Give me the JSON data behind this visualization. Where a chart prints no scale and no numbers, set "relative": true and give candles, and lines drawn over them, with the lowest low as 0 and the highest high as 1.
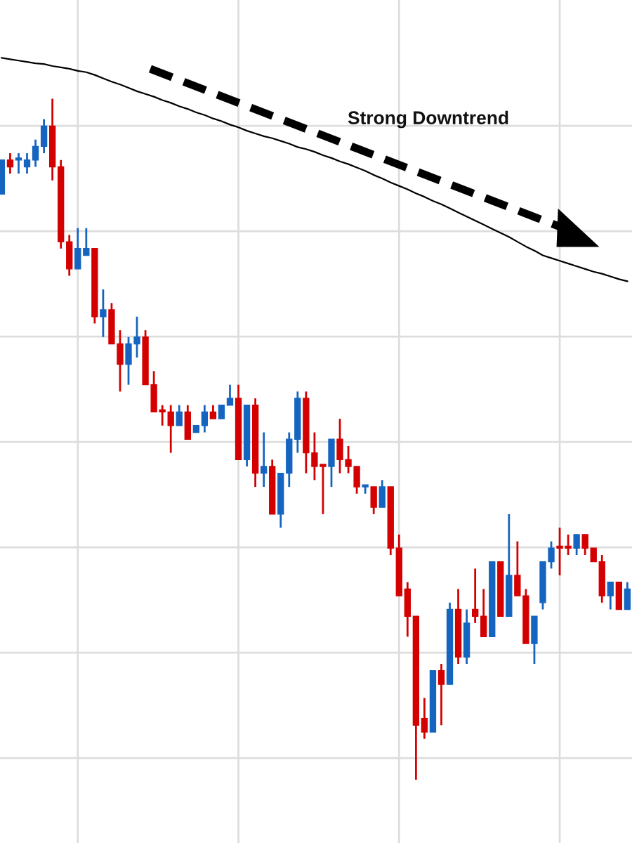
{
  "chart_data": {
    "type": "candlestick",
    "relative": true,
    "grid": true,
    "annotations": [
      "Strong Downtrend"
    ],
    "categories": [
      null,
      null,
      null,
      null,
      null,
      null,
      null,
      null,
      null,
      null,
      null,
      null,
      null,
      null,
      null,
      null,
      null,
      null,
      null,
      null,
      null,
      null,
      null,
      null,
      null,
      null,
      null,
      null,
      null,
      null,
      null,
      null,
      null,
      null,
      null,
      null,
      null,
      null,
      null,
      null,
      null,
      null,
      null,
      null,
      null,
      null,
      null,
      null,
      null,
      null,
      null,
      null,
      null,
      null,
      null,
      null,
      null,
      null,
      null,
      null,
      null,
      null,
      null,
      null,
      null,
      null,
      null,
      null,
      null,
      null,
      null,
      null,
      null,
      null,
      null
    ],
    "ohlc": [
      [
        0.86,
        0.91,
        0.86,
        0.91
      ],
      [
        0.91,
        0.92,
        0.89,
        0.9
      ],
      [
        0.91,
        0.92,
        0.89,
        0.91
      ],
      [
        0.9,
        0.92,
        0.89,
        0.91
      ],
      [
        0.91,
        0.94,
        0.9,
        0.93
      ],
      [
        0.93,
        0.97,
        0.92,
        0.96
      ],
      [
        0.96,
        1.0,
        0.88,
        0.9
      ],
      [
        0.9,
        0.91,
        0.78,
        0.79
      ],
      [
        0.79,
        0.8,
        0.74,
        0.75
      ],
      [
        0.75,
        0.81,
        0.75,
        0.78
      ],
      [
        0.77,
        0.81,
        0.77,
        0.78
      ],
      [
        0.78,
        0.78,
        0.67,
        0.68
      ],
      [
        0.68,
        0.72,
        0.65,
        0.69
      ],
      [
        0.69,
        0.7,
        0.64,
        0.64
      ],
      [
        0.64,
        0.66,
        0.57,
        0.61
      ],
      [
        0.61,
        0.65,
        0.58,
        0.64
      ],
      [
        0.64,
        0.68,
        0.62,
        0.65
      ],
      [
        0.65,
        0.66,
        0.58,
        0.58
      ],
      [
        0.58,
        0.6,
        0.54,
        0.54
      ],
      [
        0.54,
        0.55,
        0.52,
        0.54
      ],
      [
        0.54,
        0.55,
        0.48,
        0.52
      ],
      [
        0.52,
        0.55,
        0.52,
        0.54
      ],
      [
        0.54,
        0.55,
        0.5,
        0.5
      ],
      [
        0.51,
        0.52,
        0.51,
        0.52
      ],
      [
        0.52,
        0.55,
        0.51,
        0.54
      ],
      [
        0.54,
        0.55,
        0.53,
        0.53
      ],
      [
        0.53,
        0.55,
        0.53,
        0.55
      ],
      [
        0.55,
        0.58,
        0.55,
        0.56
      ],
      [
        0.56,
        0.58,
        0.47,
        0.47
      ],
      [
        0.47,
        0.55,
        0.46,
        0.55
      ],
      [
        0.55,
        0.56,
        0.43,
        0.45
      ],
      [
        0.45,
        0.51,
        0.43,
        0.46
      ],
      [
        0.46,
        0.47,
        0.39,
        0.39
      ],
      [
        0.39,
        0.45,
        0.37,
        0.45
      ],
      [
        0.45,
        0.51,
        0.43,
        0.5
      ],
      [
        0.5,
        0.57,
        0.48,
        0.56
      ],
      [
        0.56,
        0.57,
        0.45,
        0.48
      ],
      [
        0.48,
        0.51,
        0.44,
        0.46
      ],
      [
        0.46,
        0.46,
        0.39,
        0.46
      ],
      [
        0.46,
        0.5,
        0.43,
        0.5
      ],
      [
        0.5,
        0.53,
        0.45,
        0.47
      ],
      [
        0.47,
        0.49,
        0.45,
        0.46
      ],
      [
        0.46,
        0.46,
        0.42,
        0.43
      ],
      [
        0.43,
        0.43,
        0.42,
        0.43
      ],
      [
        0.43,
        0.43,
        0.39,
        0.4
      ],
      [
        0.4,
        0.44,
        0.4,
        0.43
      ],
      [
        0.43,
        0.43,
        0.33,
        0.34
      ],
      [
        0.34,
        0.36,
        0.27,
        0.27
      ],
      [
        0.28,
        0.29,
        0.21,
        0.24
      ],
      [
        0.24,
        0.24,
        0.0,
        0.08
      ],
      [
        0.09,
        0.12,
        0.06,
        0.07
      ],
      [
        0.07,
        0.16,
        0.07,
        0.16
      ],
      [
        0.16,
        0.17,
        0.08,
        0.14
      ],
      [
        0.14,
        0.26,
        0.14,
        0.25
      ],
      [
        0.25,
        0.28,
        0.17,
        0.18
      ],
      [
        0.18,
        0.25,
        0.17,
        0.23
      ],
      [
        0.25,
        0.31,
        0.23,
        0.24
      ],
      [
        0.24,
        0.28,
        0.21,
        0.21
      ],
      [
        0.21,
        0.32,
        0.21,
        0.32
      ],
      [
        0.32,
        0.32,
        0.24,
        0.24
      ],
      [
        0.24,
        0.39,
        0.24,
        0.3
      ],
      [
        0.3,
        0.35,
        0.27,
        0.27
      ],
      [
        0.27,
        0.28,
        0.2,
        0.2
      ],
      [
        0.2,
        0.24,
        0.17,
        0.24
      ],
      [
        0.26,
        0.32,
        0.25,
        0.32
      ],
      [
        0.32,
        0.35,
        0.31,
        0.34
      ],
      [
        0.34,
        0.37,
        0.3,
        0.34
      ],
      [
        0.34,
        0.36,
        0.33,
        0.34
      ],
      [
        0.34,
        0.36,
        0.33,
        0.36
      ],
      [
        0.36,
        0.36,
        0.33,
        0.34
      ],
      [
        0.34,
        0.34,
        0.32,
        0.32
      ],
      [
        0.32,
        0.33,
        0.26,
        0.27
      ],
      [
        0.27,
        0.29,
        0.25,
        0.29
      ],
      [
        0.29,
        0.29,
        0.25,
        0.25
      ],
      [
        0.25,
        0.29,
        0.25,
        0.28
      ]
    ],
    "colors": [
      "#1565c0",
      "#d40000",
      "#1565c0",
      "#1565c0",
      "#1565c0",
      "#1565c0",
      "#d40000",
      "#d40000",
      "#d40000",
      "#1565c0",
      "#1565c0",
      "#d40000",
      "#1565c0",
      "#d40000",
      "#d40000",
      "#1565c0",
      "#1565c0",
      "#d40000",
      "#d40000",
      "#d40000",
      "#d40000",
      "#1565c0",
      "#d40000",
      "#1565c0",
      "#1565c0",
      "#d40000",
      "#1565c0",
      "#1565c0",
      "#d40000",
      "#1565c0",
      "#d40000",
      "#1565c0",
      "#d40000",
      "#1565c0",
      "#1565c0",
      "#1565c0",
      "#d40000",
      "#d40000",
      "#d40000",
      "#1565c0",
      "#d40000",
      "#d40000",
      "#d40000",
      "#1565c0",
      "#d40000",
      "#1565c0",
      "#d40000",
      "#d40000",
      "#d40000",
      "#d40000",
      "#d40000",
      "#1565c0",
      "#d40000",
      "#1565c0",
      "#d40000",
      "#1565c0",
      "#d40000",
      "#d40000",
      "#1565c0",
      "#d40000",
      "#1565c0",
      "#d40000",
      "#d40000",
      "#1565c0",
      "#1565c0",
      "#1565c0",
      "#d40000",
      "#d40000",
      "#1565c0",
      "#d40000",
      "#d40000",
      "#d40000",
      "#1565c0",
      "#d40000",
      "#1565c0"
    ],
    "series": [
      {
        "type": "line",
        "color": "#000000",
        "values": [
          1.06,
          1.058,
          1.056,
          1.054,
          1.052,
          1.051,
          1.048,
          1.046,
          1.044,
          1.041,
          1.039,
          1.035,
          1.03,
          1.025,
          1.021,
          1.016,
          1.011,
          1.007,
          1.003,
          0.998,
          0.994,
          0.989,
          0.985,
          0.98,
          0.976,
          0.971,
          0.967,
          0.962,
          0.958,
          0.953,
          0.949,
          0.945,
          0.942,
          0.938,
          0.934,
          0.929,
          0.926,
          0.922,
          0.917,
          0.913,
          0.908,
          0.904,
          0.899,
          0.894,
          0.888,
          0.883,
          0.877,
          0.872,
          0.867,
          0.861,
          0.856,
          0.85,
          0.845,
          0.839,
          0.833,
          0.827,
          0.821,
          0.815,
          0.809,
          0.803,
          0.797,
          0.79,
          0.783,
          0.777,
          0.77,
          0.766,
          0.762,
          0.758,
          0.754,
          0.75,
          0.746,
          0.743,
          0.739,
          0.735,
          0.732
        ]
      }
    ]
  }
}
